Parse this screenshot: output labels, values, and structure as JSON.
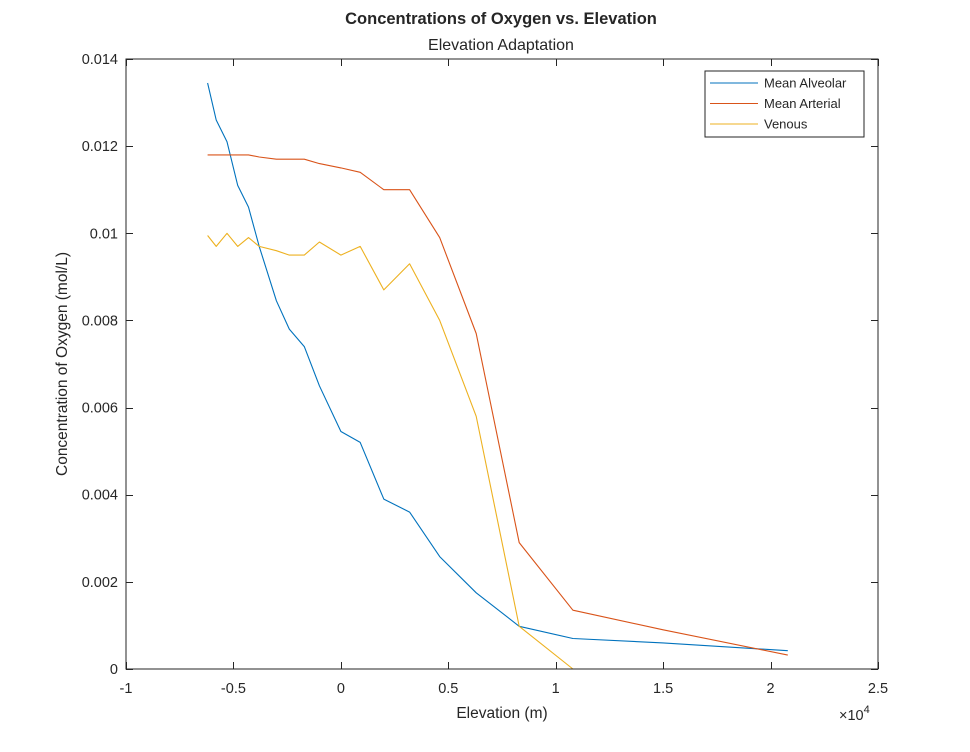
{
  "chart_data": {
    "type": "line",
    "title": "Concentrations of Oxygen vs. Elevation",
    "subtitle": "Elevation Adaptation",
    "xlabel": "Elevation (m)",
    "ylabel": "Concentration of Oxygen (mol/L)",
    "xlim": [
      -1,
      2.5
    ],
    "ylim": [
      0,
      0.014
    ],
    "x_multiplier_label": "×10",
    "x_multiplier_exponent": "4",
    "xticks": [
      -1,
      -0.5,
      0,
      0.5,
      1,
      1.5,
      2,
      2.5
    ],
    "xtick_labels": [
      "-1",
      "-0.5",
      "0",
      "0.5",
      "1",
      "1.5",
      "2",
      "2.5"
    ],
    "yticks": [
      0,
      0.002,
      0.004,
      0.006,
      0.008,
      0.01,
      0.012,
      0.014
    ],
    "ytick_labels": [
      "0",
      "0.002",
      "0.004",
      "0.006",
      "0.008",
      "0.01",
      "0.012",
      "0.014"
    ],
    "grid": false,
    "legend_position": "top-right",
    "series": [
      {
        "name": "Mean Alveolar",
        "color": "#0072BD",
        "x": [
          -0.62,
          -0.58,
          -0.53,
          -0.48,
          -0.43,
          -0.38,
          -0.3,
          -0.24,
          -0.17,
          -0.1,
          0.0,
          0.09,
          0.2,
          0.32,
          0.46,
          0.63,
          0.83,
          1.08,
          1.5,
          2.08
        ],
        "y": [
          0.01345,
          0.0126,
          0.0121,
          0.0111,
          0.0106,
          0.0097,
          0.00845,
          0.0078,
          0.0074,
          0.0065,
          0.00545,
          0.0052,
          0.0039,
          0.0036,
          0.00258,
          0.00175,
          0.00098,
          0.0007,
          0.0006,
          0.00042
        ]
      },
      {
        "name": "Mean Arterial",
        "color": "#D95319",
        "x": [
          -0.62,
          -0.58,
          -0.53,
          -0.48,
          -0.43,
          -0.38,
          -0.3,
          -0.24,
          -0.17,
          -0.1,
          0.0,
          0.09,
          0.2,
          0.32,
          0.46,
          0.63,
          0.83,
          1.08,
          1.5,
          2.08
        ],
        "y": [
          0.0118,
          0.0118,
          0.0118,
          0.0118,
          0.0118,
          0.01175,
          0.0117,
          0.0117,
          0.0117,
          0.0116,
          0.0115,
          0.0114,
          0.011,
          0.011,
          0.0099,
          0.0077,
          0.0029,
          0.00135,
          0.0009,
          0.00032
        ]
      },
      {
        "name": "Venous",
        "color": "#EDB120",
        "x": [
          -0.62,
          -0.58,
          -0.53,
          -0.48,
          -0.43,
          -0.38,
          -0.3,
          -0.24,
          -0.17,
          -0.1,
          0.0,
          0.09,
          0.2,
          0.32,
          0.46,
          0.63,
          0.83,
          1.08,
          1.5,
          2.08
        ],
        "y": [
          0.00995,
          0.0097,
          0.01,
          0.0097,
          0.0099,
          0.0097,
          0.0096,
          0.0095,
          0.0095,
          0.0098,
          0.0095,
          0.0097,
          0.0087,
          0.0093,
          0.008,
          0.0058,
          0.00098,
          0.0,
          0.0,
          0.0
        ]
      }
    ]
  }
}
